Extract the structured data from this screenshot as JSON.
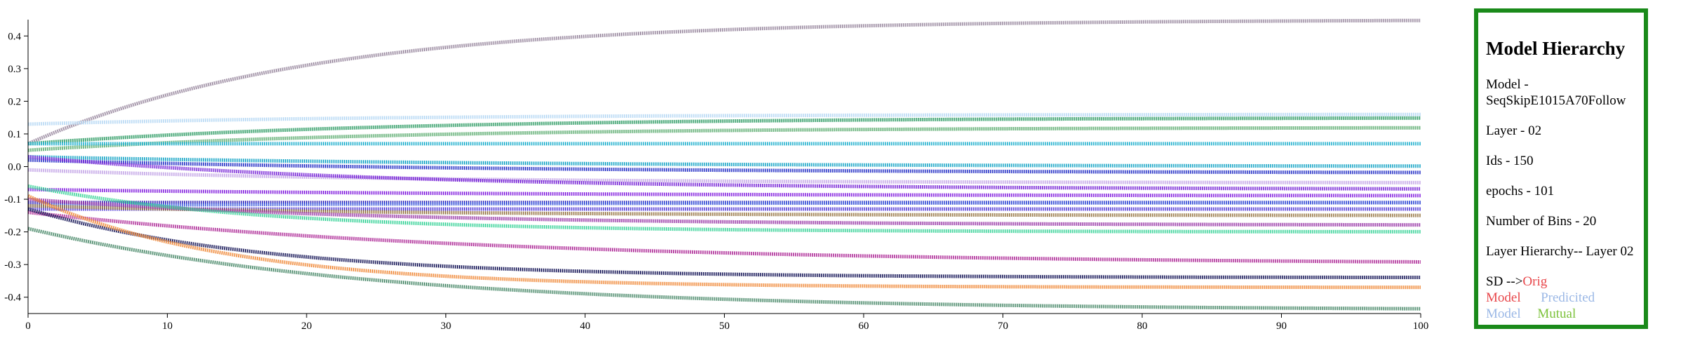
{
  "panel": {
    "title": "Model Hierarchy",
    "model": "Model - SeqSkipE1015A70Follow",
    "layer": "Layer - 02",
    "ids": "Ids - 150",
    "epochs": "epochs - 101",
    "bins": "Number of Bins - 20",
    "hierarchy": "Layer Hierarchy-- Layer 02",
    "sd_prefix": "SD -->",
    "sd_orig": "Orig Model",
    "sd_pred": "Predicited Model",
    "sd_mutual": "Mutual"
  },
  "chart_data": {
    "type": "line",
    "title": "",
    "xlabel": "",
    "ylabel": "",
    "xlim": [
      0,
      100
    ],
    "ylim": [
      -0.45,
      0.45
    ],
    "x_ticks": [
      0,
      10,
      20,
      30,
      40,
      50,
      60,
      70,
      80,
      90,
      100
    ],
    "y_ticks": [
      0.4,
      0.3,
      0.2,
      0.1,
      0.0,
      -0.1,
      -0.2,
      -0.3,
      -0.4
    ],
    "x_tick_labels": [
      "0",
      "10",
      "20",
      "30",
      "40",
      "50",
      "60",
      "70",
      "80",
      "90",
      "100"
    ],
    "y_tick_labels": [
      "0.4",
      "0.3",
      "0.2",
      "0.1",
      "0.0",
      "-0.1",
      "-0.2",
      "-0.3",
      "-0.4"
    ],
    "grid": false,
    "series": [
      {
        "color": "#9a8aa0",
        "start": 0.07,
        "end": 0.45,
        "rate": 0.05
      },
      {
        "color": "#b9d9f5",
        "start": 0.13,
        "end": 0.16,
        "rate": 0.04
      },
      {
        "color": "#2a9a62",
        "start": 0.07,
        "end": 0.15,
        "rate": 0.04
      },
      {
        "color": "#5aab6e",
        "start": 0.05,
        "end": 0.12,
        "rate": 0.04
      },
      {
        "color": "#2bb4d0",
        "start": 0.07,
        "end": 0.07,
        "rate": 0.03
      },
      {
        "color": "#1ea8c8",
        "start": 0.03,
        "end": 0.0,
        "rate": 0.03
      },
      {
        "color": "#2a35c8",
        "start": 0.02,
        "end": -0.02,
        "rate": 0.03
      },
      {
        "color": "#c6a8e8",
        "start": -0.01,
        "end": -0.05,
        "rate": 0.04
      },
      {
        "color": "#7b2ad8",
        "start": 0.03,
        "end": -0.07,
        "rate": 0.04
      },
      {
        "color": "#8a2ae0",
        "start": -0.07,
        "end": -0.09,
        "rate": 0.03
      },
      {
        "color": "#3a2ab8",
        "start": -0.11,
        "end": -0.11,
        "rate": 0.03
      },
      {
        "color": "#5a44d8",
        "start": -0.13,
        "end": -0.13,
        "rate": 0.03
      },
      {
        "color": "#4d6ae0",
        "start": -0.12,
        "end": -0.11,
        "rate": 0.03
      },
      {
        "color": "#9a7a4a",
        "start": -0.12,
        "end": -0.15,
        "rate": 0.04
      },
      {
        "color": "#9a3aa8",
        "start": -0.1,
        "end": -0.18,
        "rate": 0.04
      },
      {
        "color": "#3cd49a",
        "start": -0.06,
        "end": -0.2,
        "rate": 0.06
      },
      {
        "color": "#b0309a",
        "start": -0.14,
        "end": -0.3,
        "rate": 0.03
      },
      {
        "color": "#1a1a5a",
        "start": -0.13,
        "end": -0.34,
        "rate": 0.06
      },
      {
        "color": "#f08a3a",
        "start": -0.09,
        "end": -0.37,
        "rate": 0.07
      },
      {
        "color": "#4a8a6a",
        "start": -0.19,
        "end": -0.44,
        "rate": 0.04
      }
    ]
  }
}
